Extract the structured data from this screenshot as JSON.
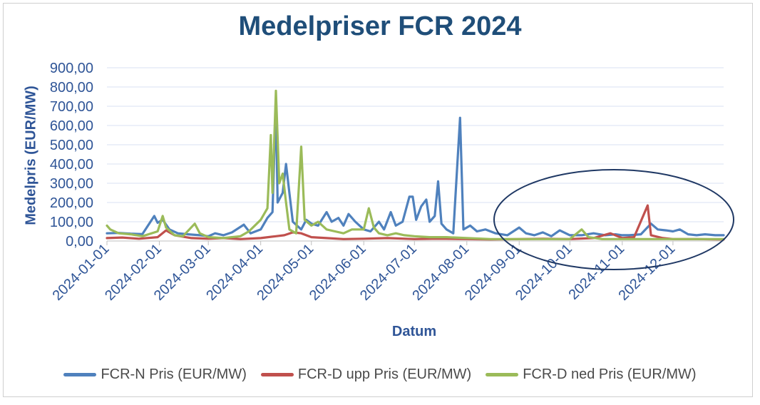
{
  "chart_data": {
    "type": "line",
    "title": "Medelpriser FCR 2024",
    "xlabel": "Datum",
    "ylabel": "Medelpris (EUR/MW)",
    "ylim": [
      0,
      900
    ],
    "yticks": [
      "0,00",
      "100,00",
      "200,00",
      "300,00",
      "400,00",
      "500,00",
      "600,00",
      "700,00",
      "800,00",
      "900,00"
    ],
    "xlim": [
      "2024-01-01",
      "2024-12-31"
    ],
    "xticks": [
      "2024-01-01",
      "2024-02-01",
      "2024-03-01",
      "2024-04-01",
      "2024-05-01",
      "2024-06-01",
      "2024-07-01",
      "2024-08-01",
      "2024-09-01",
      "2024-10-01",
      "2024-11-01",
      "2024-12-01"
    ],
    "grid": "horizontal",
    "legend_position": "bottom",
    "annotation": "ellipse",
    "series": [
      {
        "name": "FCR-N Pris (EUR/MW)",
        "color": "#4f81bd",
        "points": [
          [
            "2024-01-01",
            40
          ],
          [
            "2024-01-08",
            42
          ],
          [
            "2024-01-15",
            38
          ],
          [
            "2024-01-22",
            36
          ],
          [
            "2024-01-29",
            130
          ],
          [
            "2024-01-31",
            95
          ],
          [
            "2024-02-03",
            110
          ],
          [
            "2024-02-07",
            60
          ],
          [
            "2024-02-12",
            40
          ],
          [
            "2024-02-18",
            35
          ],
          [
            "2024-02-25",
            30
          ],
          [
            "2024-03-01",
            25
          ],
          [
            "2024-03-05",
            40
          ],
          [
            "2024-03-10",
            30
          ],
          [
            "2024-03-15",
            45
          ],
          [
            "2024-03-22",
            85
          ],
          [
            "2024-03-26",
            40
          ],
          [
            "2024-04-01",
            60
          ],
          [
            "2024-04-05",
            120
          ],
          [
            "2024-04-08",
            150
          ],
          [
            "2024-04-10",
            720
          ],
          [
            "2024-04-11",
            200
          ],
          [
            "2024-04-14",
            250
          ],
          [
            "2024-04-16",
            400
          ],
          [
            "2024-04-18",
            250
          ],
          [
            "2024-04-20",
            100
          ],
          [
            "2024-04-25",
            60
          ],
          [
            "2024-04-28",
            110
          ],
          [
            "2024-05-01",
            90
          ],
          [
            "2024-05-05",
            80
          ],
          [
            "2024-05-10",
            150
          ],
          [
            "2024-05-13",
            100
          ],
          [
            "2024-05-17",
            120
          ],
          [
            "2024-05-20",
            80
          ],
          [
            "2024-05-23",
            140
          ],
          [
            "2024-05-27",
            100
          ],
          [
            "2024-06-01",
            60
          ],
          [
            "2024-06-05",
            50
          ],
          [
            "2024-06-10",
            100
          ],
          [
            "2024-06-13",
            60
          ],
          [
            "2024-06-17",
            150
          ],
          [
            "2024-06-20",
            80
          ],
          [
            "2024-06-24",
            100
          ],
          [
            "2024-06-28",
            230
          ],
          [
            "2024-06-30",
            230
          ],
          [
            "2024-07-02",
            110
          ],
          [
            "2024-07-05",
            180
          ],
          [
            "2024-07-08",
            215
          ],
          [
            "2024-07-10",
            100
          ],
          [
            "2024-07-13",
            130
          ],
          [
            "2024-07-15",
            310
          ],
          [
            "2024-07-17",
            90
          ],
          [
            "2024-07-20",
            60
          ],
          [
            "2024-07-24",
            40
          ],
          [
            "2024-07-28",
            640
          ],
          [
            "2024-07-30",
            60
          ],
          [
            "2024-08-03",
            80
          ],
          [
            "2024-08-07",
            50
          ],
          [
            "2024-08-12",
            60
          ],
          [
            "2024-08-18",
            40
          ],
          [
            "2024-08-25",
            30
          ],
          [
            "2024-09-01",
            70
          ],
          [
            "2024-09-05",
            40
          ],
          [
            "2024-09-10",
            30
          ],
          [
            "2024-09-15",
            45
          ],
          [
            "2024-09-20",
            25
          ],
          [
            "2024-09-25",
            55
          ],
          [
            "2024-10-01",
            30
          ],
          [
            "2024-10-08",
            30
          ],
          [
            "2024-10-15",
            40
          ],
          [
            "2024-10-22",
            30
          ],
          [
            "2024-10-28",
            35
          ],
          [
            "2024-11-01",
            30
          ],
          [
            "2024-11-05",
            30
          ],
          [
            "2024-11-12",
            35
          ],
          [
            "2024-11-18",
            90
          ],
          [
            "2024-11-22",
            60
          ],
          [
            "2024-11-27",
            55
          ],
          [
            "2024-12-01",
            50
          ],
          [
            "2024-12-05",
            60
          ],
          [
            "2024-12-10",
            35
          ],
          [
            "2024-12-15",
            30
          ],
          [
            "2024-12-20",
            35
          ],
          [
            "2024-12-26",
            30
          ],
          [
            "2024-12-31",
            30
          ]
        ]
      },
      {
        "name": "FCR-D upp Pris (EUR/MW)",
        "color": "#c0504d",
        "points": [
          [
            "2024-01-01",
            15
          ],
          [
            "2024-01-10",
            18
          ],
          [
            "2024-01-20",
            12
          ],
          [
            "2024-01-31",
            20
          ],
          [
            "2024-02-05",
            55
          ],
          [
            "2024-02-10",
            30
          ],
          [
            "2024-02-20",
            15
          ],
          [
            "2024-03-01",
            12
          ],
          [
            "2024-03-10",
            15
          ],
          [
            "2024-03-20",
            10
          ],
          [
            "2024-04-01",
            15
          ],
          [
            "2024-04-10",
            25
          ],
          [
            "2024-04-15",
            30
          ],
          [
            "2024-04-20",
            45
          ],
          [
            "2024-04-25",
            40
          ],
          [
            "2024-05-01",
            20
          ],
          [
            "2024-05-10",
            15
          ],
          [
            "2024-05-20",
            10
          ],
          [
            "2024-06-01",
            12
          ],
          [
            "2024-06-15",
            15
          ],
          [
            "2024-07-01",
            10
          ],
          [
            "2024-07-15",
            12
          ],
          [
            "2024-08-01",
            10
          ],
          [
            "2024-08-15",
            8
          ],
          [
            "2024-09-01",
            10
          ],
          [
            "2024-09-15",
            12
          ],
          [
            "2024-10-01",
            10
          ],
          [
            "2024-10-15",
            15
          ],
          [
            "2024-10-25",
            40
          ],
          [
            "2024-11-01",
            15
          ],
          [
            "2024-11-08",
            20
          ],
          [
            "2024-11-16",
            185
          ],
          [
            "2024-11-18",
            30
          ],
          [
            "2024-11-25",
            15
          ],
          [
            "2024-12-01",
            10
          ],
          [
            "2024-12-15",
            10
          ],
          [
            "2024-12-31",
            8
          ]
        ]
      },
      {
        "name": "FCR-D ned Pris (EUR/MW)",
        "color": "#9bbb59",
        "points": [
          [
            "2024-01-01",
            80
          ],
          [
            "2024-01-03",
            60
          ],
          [
            "2024-01-08",
            40
          ],
          [
            "2024-01-15",
            35
          ],
          [
            "2024-01-22",
            25
          ],
          [
            "2024-01-31",
            50
          ],
          [
            "2024-02-03",
            130
          ],
          [
            "2024-02-05",
            70
          ],
          [
            "2024-02-10",
            30
          ],
          [
            "2024-02-15",
            25
          ],
          [
            "2024-02-22",
            90
          ],
          [
            "2024-02-25",
            40
          ],
          [
            "2024-03-01",
            20
          ],
          [
            "2024-03-10",
            15
          ],
          [
            "2024-03-20",
            25
          ],
          [
            "2024-03-25",
            50
          ],
          [
            "2024-04-01",
            110
          ],
          [
            "2024-04-05",
            170
          ],
          [
            "2024-04-07",
            550
          ],
          [
            "2024-04-08",
            250
          ],
          [
            "2024-04-10",
            780
          ],
          [
            "2024-04-12",
            300
          ],
          [
            "2024-04-14",
            350
          ],
          [
            "2024-04-16",
            200
          ],
          [
            "2024-04-18",
            60
          ],
          [
            "2024-04-22",
            40
          ],
          [
            "2024-04-25",
            490
          ],
          [
            "2024-04-27",
            110
          ],
          [
            "2024-05-01",
            80
          ],
          [
            "2024-05-05",
            100
          ],
          [
            "2024-05-10",
            60
          ],
          [
            "2024-05-15",
            50
          ],
          [
            "2024-05-20",
            40
          ],
          [
            "2024-05-25",
            60
          ],
          [
            "2024-06-01",
            60
          ],
          [
            "2024-06-04",
            170
          ],
          [
            "2024-06-07",
            70
          ],
          [
            "2024-06-10",
            40
          ],
          [
            "2024-06-15",
            30
          ],
          [
            "2024-06-20",
            40
          ],
          [
            "2024-06-25",
            30
          ],
          [
            "2024-07-01",
            25
          ],
          [
            "2024-07-10",
            20
          ],
          [
            "2024-07-20",
            20
          ],
          [
            "2024-08-01",
            15
          ],
          [
            "2024-08-15",
            10
          ],
          [
            "2024-09-01",
            10
          ],
          [
            "2024-09-15",
            10
          ],
          [
            "2024-10-01",
            10
          ],
          [
            "2024-10-08",
            60
          ],
          [
            "2024-10-12",
            20
          ],
          [
            "2024-10-20",
            10
          ],
          [
            "2024-11-01",
            10
          ],
          [
            "2024-11-15",
            10
          ],
          [
            "2024-12-01",
            10
          ],
          [
            "2024-12-15",
            10
          ],
          [
            "2024-12-31",
            10
          ]
        ]
      }
    ]
  }
}
